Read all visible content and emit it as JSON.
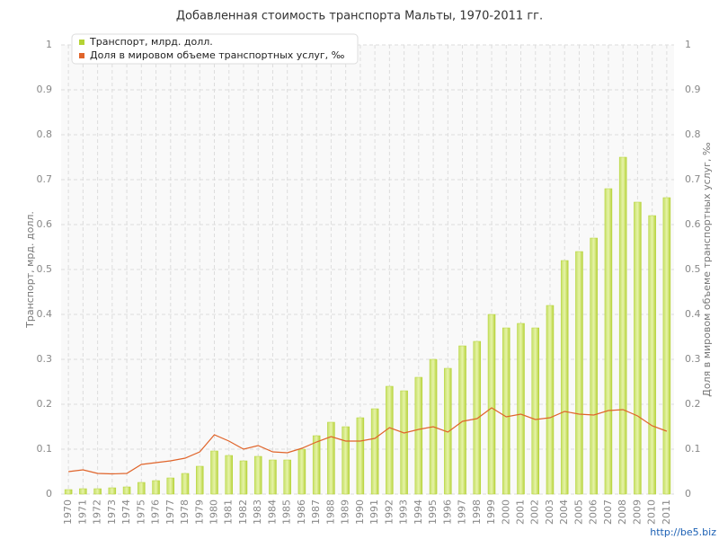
{
  "chart_data": {
    "type": "bar_line",
    "title": "Добавленная стоимость транспорта Мальты, 1970-2011 гг.",
    "y_label": "Транспорт, мрд. долл.",
    "y2_label": "Доля в мировом объеме транспортных услуг, ‰",
    "watermark": "http://be5.biz",
    "legend": "top-left",
    "grid": true,
    "categories": [
      "1970",
      "1971",
      "1972",
      "1973",
      "1974",
      "1975",
      "1976",
      "1977",
      "1978",
      "1979",
      "1980",
      "1981",
      "1982",
      "1983",
      "1984",
      "1985",
      "1986",
      "1987",
      "1988",
      "1989",
      "1990",
      "1991",
      "1992",
      "1993",
      "1994",
      "1995",
      "1996",
      "1997",
      "1998",
      "1999",
      "2000",
      "2001",
      "2002",
      "2003",
      "2004",
      "2005",
      "2006",
      "2007",
      "2008",
      "2009",
      "2010",
      "2011"
    ],
    "series": [
      {
        "name": "Транспорт, млрд. долл.",
        "color": "#b5d334",
        "kind": "bar",
        "values": [
          0.01,
          0.012,
          0.012,
          0.014,
          0.016,
          0.026,
          0.03,
          0.036,
          0.046,
          0.062,
          0.096,
          0.086,
          0.074,
          0.084,
          0.076,
          0.076,
          0.1,
          0.13,
          0.16,
          0.15,
          0.17,
          0.19,
          0.24,
          0.23,
          0.26,
          0.3,
          0.28,
          0.33,
          0.34,
          0.4,
          0.37,
          0.38,
          0.37,
          0.42,
          0.52,
          0.54,
          0.57,
          0.68,
          0.75,
          0.65,
          0.62,
          0.66
        ]
      },
      {
        "name": "Доля в мировом объеме транспортных услуг, ‰",
        "color": "#e0642a",
        "kind": "line",
        "axis": "y2",
        "values": [
          0.05,
          0.054,
          0.046,
          0.045,
          0.046,
          0.066,
          0.07,
          0.074,
          0.08,
          0.094,
          0.132,
          0.118,
          0.1,
          0.108,
          0.094,
          0.092,
          0.102,
          0.116,
          0.128,
          0.118,
          0.118,
          0.124,
          0.148,
          0.136,
          0.144,
          0.15,
          0.138,
          0.162,
          0.168,
          0.192,
          0.172,
          0.178,
          0.166,
          0.17,
          0.184,
          0.178,
          0.176,
          0.186,
          0.188,
          0.174,
          0.152,
          0.14
        ]
      }
    ],
    "ylim": [
      0,
      1
    ],
    "yticks": [
      0,
      0.1,
      0.2,
      0.3,
      0.4,
      0.5,
      0.6,
      0.7,
      0.8,
      0.9,
      1
    ],
    "y2lim": [
      0,
      1
    ],
    "y2ticks": [
      0,
      0.1,
      0.2,
      0.3,
      0.4,
      0.5,
      0.6,
      0.7,
      0.8,
      0.9,
      1
    ]
  }
}
